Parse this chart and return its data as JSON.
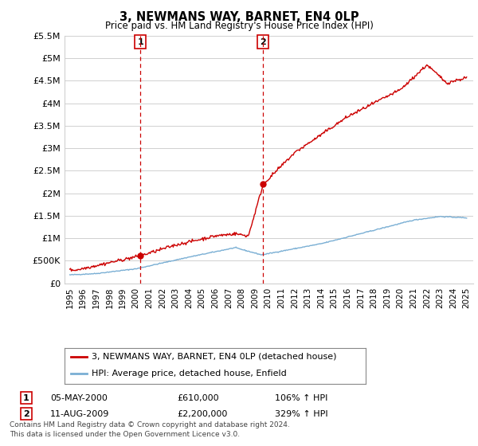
{
  "title": "3, NEWMANS WAY, BARNET, EN4 0LP",
  "subtitle": "Price paid vs. HM Land Registry's House Price Index (HPI)",
  "ylim": [
    0,
    5500000
  ],
  "yticks": [
    0,
    500000,
    1000000,
    1500000,
    2000000,
    2500000,
    3000000,
    3500000,
    4000000,
    4500000,
    5000000,
    5500000
  ],
  "ytick_labels": [
    "£0",
    "£500K",
    "£1M",
    "£1.5M",
    "£2M",
    "£2.5M",
    "£3M",
    "£3.5M",
    "£4M",
    "£4.5M",
    "£5M",
    "£5.5M"
  ],
  "xlim_start": 1994.6,
  "xlim_end": 2025.5,
  "transaction1_x": 2000.35,
  "transaction1_y": 610000,
  "transaction2_x": 2009.62,
  "transaction2_y": 2200000,
  "property_color": "#cc0000",
  "hpi_color": "#7aafd4",
  "background_color": "#ffffff",
  "grid_color": "#d0d0d0",
  "legend_label_property": "3, NEWMANS WAY, BARNET, EN4 0LP (detached house)",
  "legend_label_hpi": "HPI: Average price, detached house, Enfield",
  "footer_line1": "Contains HM Land Registry data © Crown copyright and database right 2024.",
  "footer_line2": "This data is licensed under the Open Government Licence v3.0.",
  "table_row1": [
    "1",
    "05-MAY-2000",
    "£610,000",
    "106% ↑ HPI"
  ],
  "table_row2": [
    "2",
    "11-AUG-2009",
    "£2,200,000",
    "329% ↑ HPI"
  ]
}
